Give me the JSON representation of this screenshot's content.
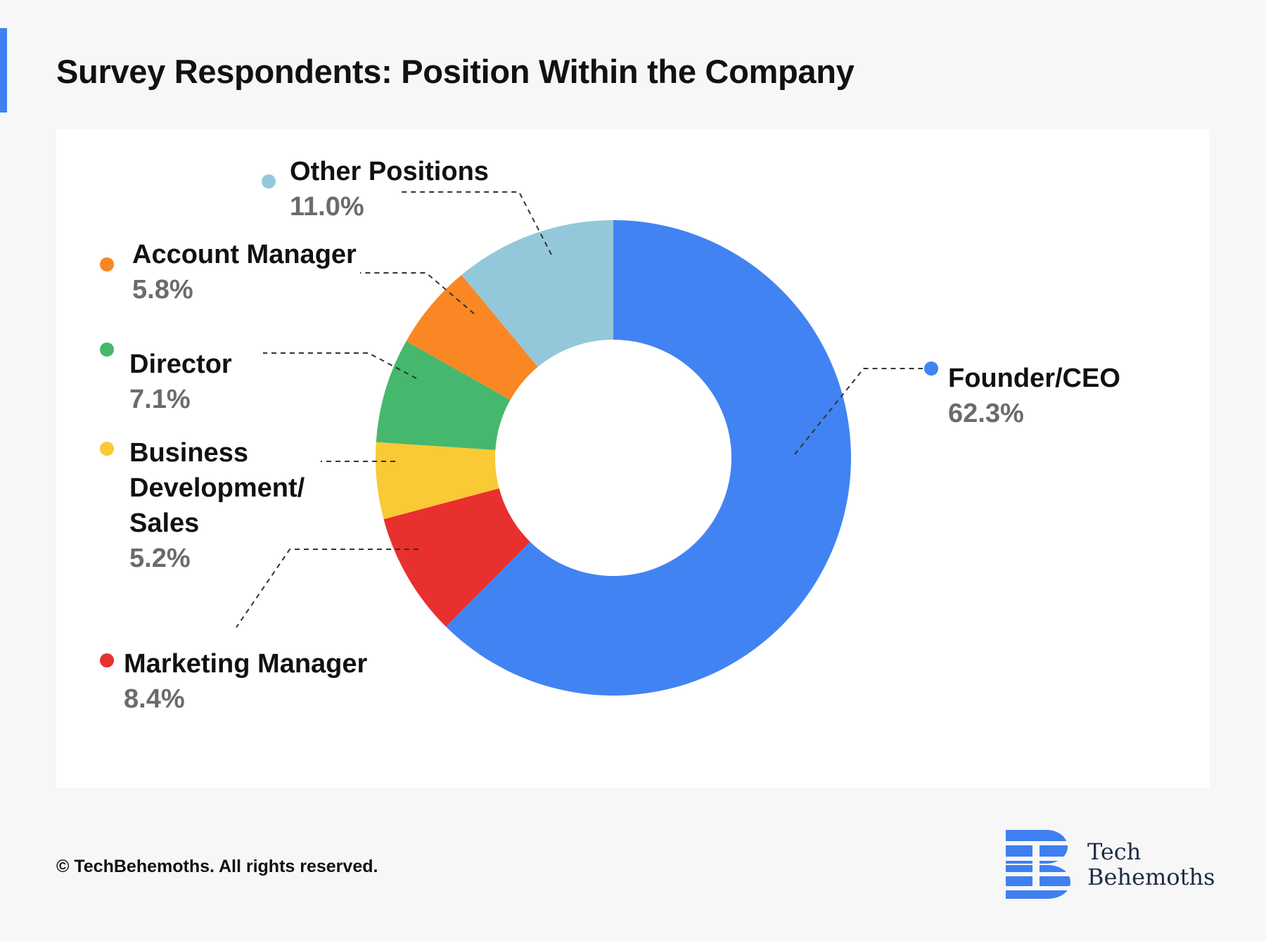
{
  "header": {
    "title": "Survey Respondents: Position Within the Company"
  },
  "footer": {
    "copyright": "© TechBehemoths. All rights reserved."
  },
  "logo": {
    "line1": "Tech",
    "line2": "Behemoths",
    "color": "#3f7ff0"
  },
  "chart_data": {
    "type": "pie",
    "variant": "donut",
    "title": "Survey Respondents: Position Within the Company",
    "value_unit": "%",
    "slices": [
      {
        "label_lines": [
          "Founder/CEO"
        ],
        "value": 62.3,
        "value_label": "62.3%",
        "color": "#4283f3"
      },
      {
        "label_lines": [
          "Marketing Manager"
        ],
        "value": 8.4,
        "value_label": "8.4%",
        "color": "#e8302f"
      },
      {
        "label_lines": [
          "Business",
          "Development/",
          "Sales"
        ],
        "value": 5.2,
        "value_label": "5.2%",
        "color": "#f9c936"
      },
      {
        "label_lines": [
          "Director"
        ],
        "value": 7.1,
        "value_label": "7.1%",
        "color": "#45b86d"
      },
      {
        "label_lines": [
          "Account Manager"
        ],
        "value": 5.8,
        "value_label": "5.8%",
        "color": "#fa8723"
      },
      {
        "label_lines": [
          "Other Positions"
        ],
        "value": 11.0,
        "value_label": "11.0%",
        "color": "#93c8da"
      }
    ],
    "label_color": "#111111",
    "value_color": "#6b6b6b"
  }
}
